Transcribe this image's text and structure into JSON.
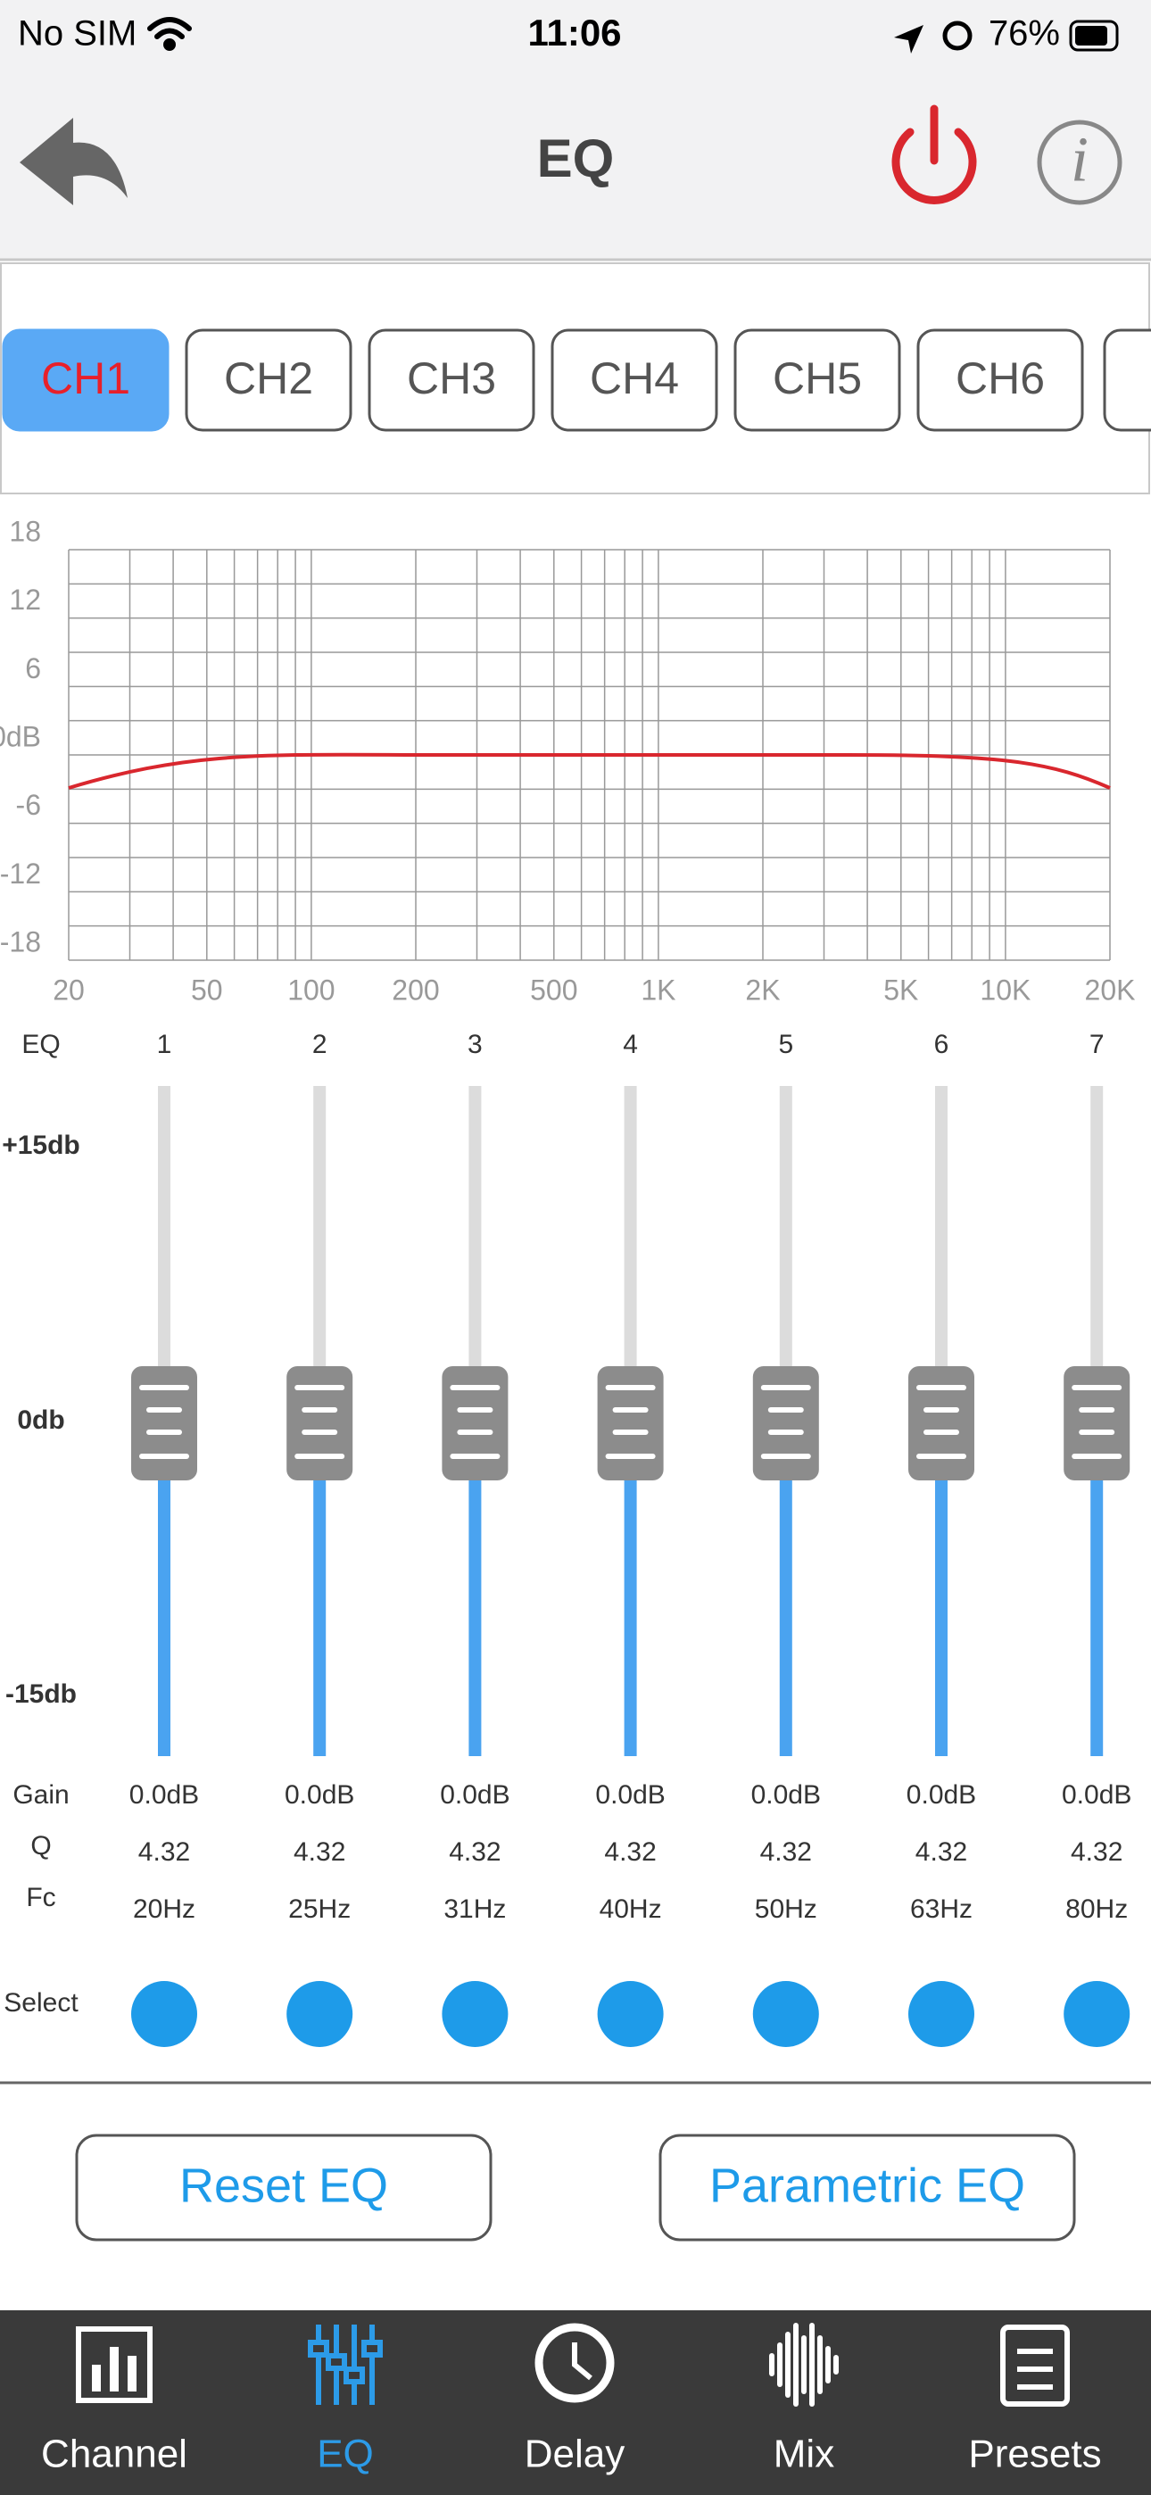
{
  "status_bar": {
    "carrier": "No SIM",
    "time": "11:06",
    "battery": "76%"
  },
  "header": {
    "title": "EQ"
  },
  "channels": [
    "CH1",
    "CH2",
    "CH3",
    "CH4",
    "CH5",
    "CH6"
  ],
  "graph": {
    "xlim": [
      20,
      20000
    ],
    "ylim": [
      -18,
      18
    ],
    "xticks": [
      20,
      50,
      100,
      200,
      500,
      {
        "value": 1000,
        "label": "1K"
      },
      {
        "value": 2000,
        "label": "2K"
      },
      {
        "value": 5000,
        "label": "5K"
      },
      {
        "value": 10000,
        "label": "10K"
      },
      {
        "value": 20000,
        "label": "20K"
      }
    ],
    "yticks": [
      18,
      12,
      6,
      {
        "value": 0,
        "label": "0dB"
      },
      -6,
      -12,
      -18
    ]
  },
  "bands": {
    "header": "EQ",
    "scale": [
      "+15db",
      "0db",
      "-15db"
    ],
    "row_labels": {
      "gain": "Gain",
      "q": "Q",
      "fc": "Fc",
      "select": "Select"
    },
    "items": [
      {
        "number": "1",
        "gain": "0.0dB",
        "q": "4.32",
        "fc": "20Hz"
      },
      {
        "number": "2",
        "gain": "0.0dB",
        "q": "4.32",
        "fc": "25Hz"
      },
      {
        "number": "3",
        "gain": "0.0dB",
        "q": "4.32",
        "fc": "31Hz"
      },
      {
        "number": "4",
        "gain": "0.0dB",
        "q": "4.32",
        "fc": "40Hz"
      },
      {
        "number": "5",
        "gain": "0.0dB",
        "q": "4.32",
        "fc": "50Hz"
      },
      {
        "number": "6",
        "gain": "0.0dB",
        "q": "4.32",
        "fc": "63Hz"
      },
      {
        "number": "7",
        "gain": "0.0dB",
        "q": "4.32",
        "fc": "80Hz"
      }
    ]
  },
  "buttons": [
    "Reset EQ",
    "Parametric EQ"
  ],
  "tabs": [
    "Channel",
    "EQ",
    "Delay",
    "Mix",
    "Presets"
  ]
}
